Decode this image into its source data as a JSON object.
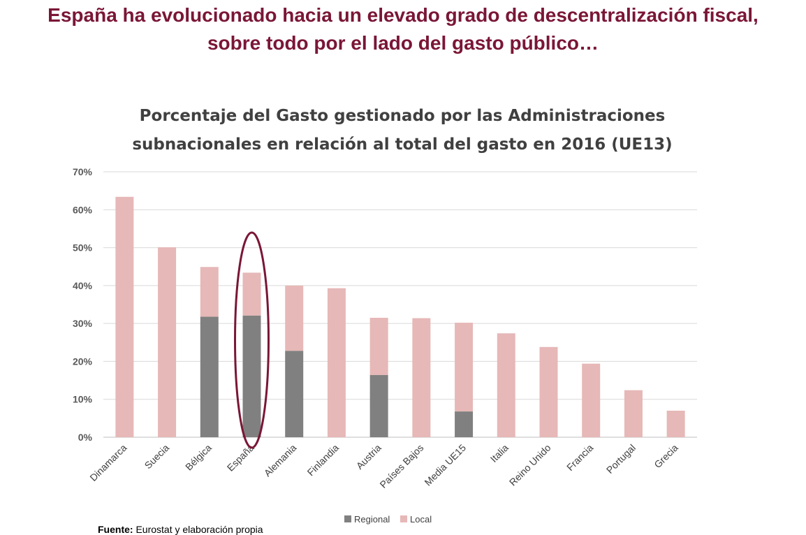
{
  "slide": {
    "title_line1": "España ha evolucionado hacia un elevado grado de descentralización fiscal,",
    "title_line2": "sobre todo por el lado del gasto público…"
  },
  "footer": {
    "source_label": "Fuente:",
    "source_text": "Eurostat y elaboración propia"
  },
  "chart_data": {
    "type": "bar",
    "stacked": true,
    "title_line1": "Porcentaje del Gasto gestionado por las Administraciones",
    "title_line2": "subnacionales en relación al total del gasto en 2016 (UE13)",
    "categories": [
      "Dinamarca",
      "Suecia",
      "Bélgica",
      "España",
      "Alemania",
      "Finlandia",
      "Austria",
      "Países Bajos",
      "Media UE15",
      "Italia",
      "Reino Unido",
      "Francia",
      "Portugal",
      "Grecia"
    ],
    "series": [
      {
        "name": "Regional",
        "color": "#808080",
        "values": [
          0,
          0,
          31.8,
          32.1,
          22.8,
          0,
          16.4,
          0,
          6.8,
          0,
          0,
          0,
          0,
          0
        ]
      },
      {
        "name": "Local",
        "color": "#e6b8b7",
        "values": [
          63.4,
          50.1,
          13.1,
          11.3,
          17.2,
          39.3,
          15.1,
          31.4,
          23.4,
          27.4,
          23.8,
          19.4,
          12.4,
          7.0
        ]
      }
    ],
    "yticks": [
      "0%",
      "10%",
      "20%",
      "30%",
      "40%",
      "50%",
      "60%",
      "70%"
    ],
    "ylim": [
      0,
      70
    ],
    "grid": true,
    "legend_position": "bottom",
    "highlight_category": "España",
    "highlight_color": "#7a1636",
    "xlabel": "",
    "ylabel": ""
  }
}
